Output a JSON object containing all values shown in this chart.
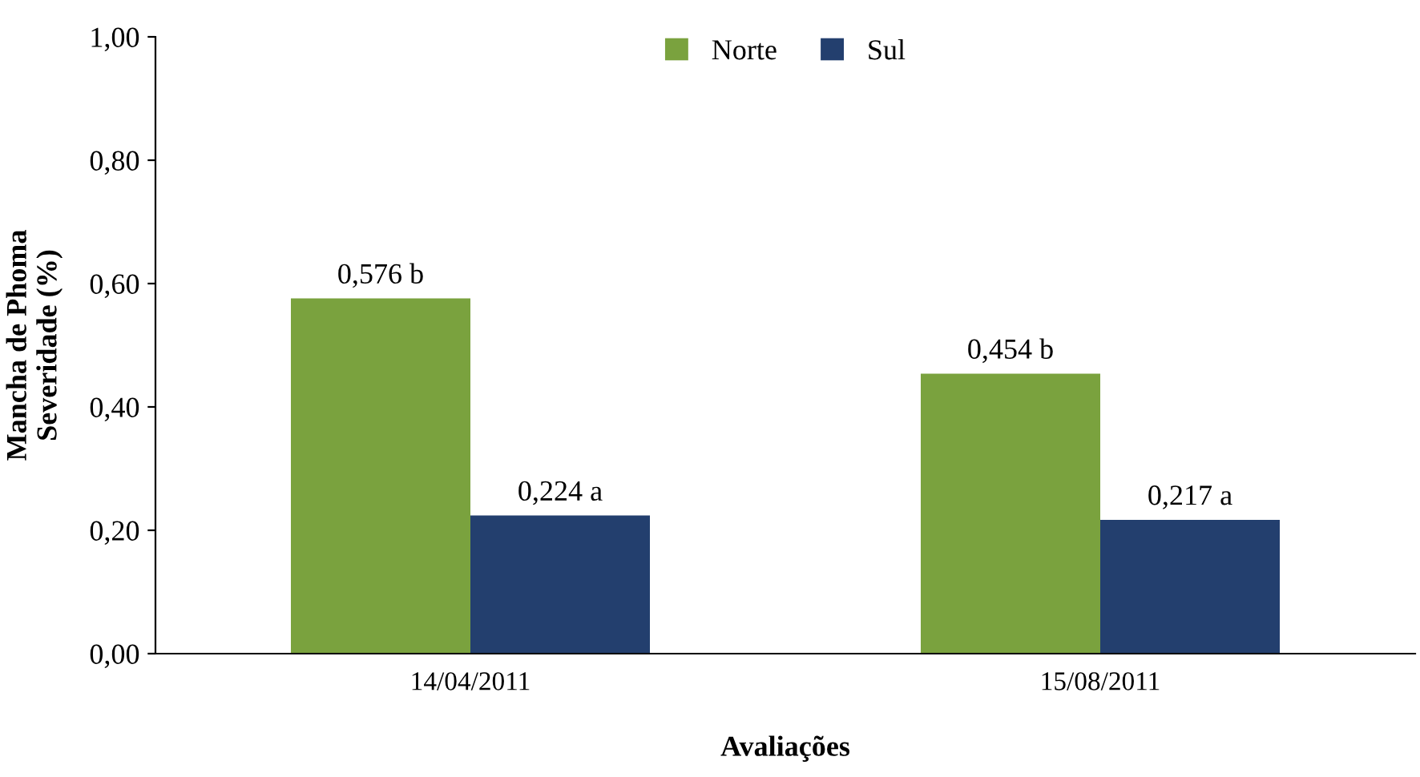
{
  "chart_data": {
    "type": "bar",
    "xlabel": "Avaliações",
    "ylabel": "Mancha de Phoma\nSeveridade (%)",
    "categories": [
      "14/04/2011",
      "15/08/2011"
    ],
    "series": [
      {
        "name": "Norte",
        "color": "#7aa23e",
        "values": [
          0.576,
          0.454
        ],
        "value_labels": [
          "0,576 b",
          "0,454 b"
        ]
      },
      {
        "name": "Sul",
        "color": "#233f6e",
        "values": [
          0.224,
          0.217
        ],
        "value_labels": [
          "0,224 a",
          "0,217 a"
        ]
      }
    ],
    "ylim": [
      0,
      1
    ],
    "yticks": [
      {
        "value": 0,
        "label": "0,00"
      },
      {
        "value": 0.2,
        "label": "0,20"
      },
      {
        "value": 0.4,
        "label": "0,40"
      },
      {
        "value": 0.6,
        "label": "0,60"
      },
      {
        "value": 0.8,
        "label": "0,80"
      },
      {
        "value": 1,
        "label": "1,00"
      }
    ],
    "grid": false,
    "legend": "top"
  }
}
